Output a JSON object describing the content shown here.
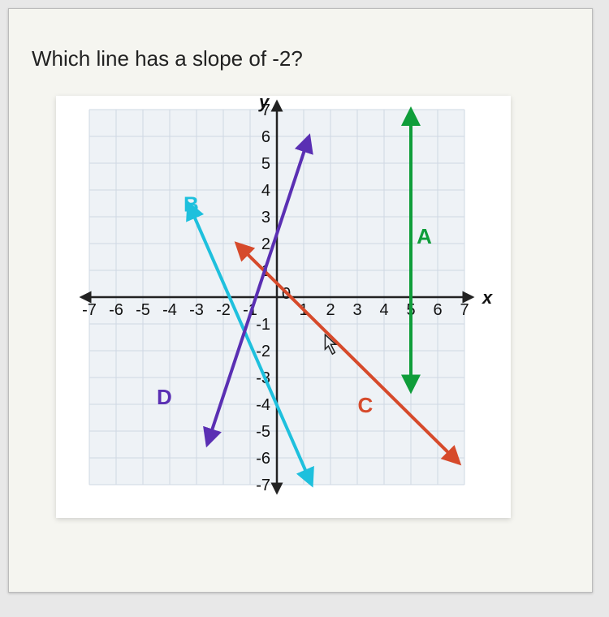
{
  "question_text": "Which line has a slope of -2?",
  "chart": {
    "type": "line",
    "background_color": "#eef2f6",
    "grid_color": "#cfd8e3",
    "axis_color": "#222222",
    "tick_fontsize": 20,
    "xlim": [
      -7,
      7
    ],
    "ylim": [
      -7,
      7
    ],
    "tick_step": 1,
    "x_axis_label": "x",
    "y_axis_label": "y",
    "lines": {
      "A": {
        "label": "A",
        "color": "#0f9d3a",
        "width": 4,
        "has_arrows": true,
        "points": [
          [
            5,
            -3.5
          ],
          [
            5,
            7
          ]
        ],
        "label_pos": [
          5.5,
          2
        ]
      },
      "B": {
        "label": "B",
        "color": "#1ec0dd",
        "width": 4,
        "has_arrows": true,
        "points": [
          [
            -3.3,
            3.5
          ],
          [
            1.3,
            -7
          ]
        ],
        "label_pos": [
          -3.2,
          3.2
        ]
      },
      "C": {
        "label": "C",
        "color": "#d64a2b",
        "width": 4,
        "has_arrows": true,
        "points": [
          [
            -1.5,
            2
          ],
          [
            6.8,
            -6.2
          ]
        ],
        "label_pos": [
          3.3,
          -4.3
        ]
      },
      "D": {
        "label": "D",
        "color": "#5a2fb3",
        "width": 4,
        "has_arrows": true,
        "points": [
          [
            -2.6,
            -5.5
          ],
          [
            1.2,
            6
          ]
        ],
        "label_pos": [
          -4.2,
          -4
        ]
      }
    },
    "cursor_pos": [
      1.8,
      -1.4
    ]
  }
}
